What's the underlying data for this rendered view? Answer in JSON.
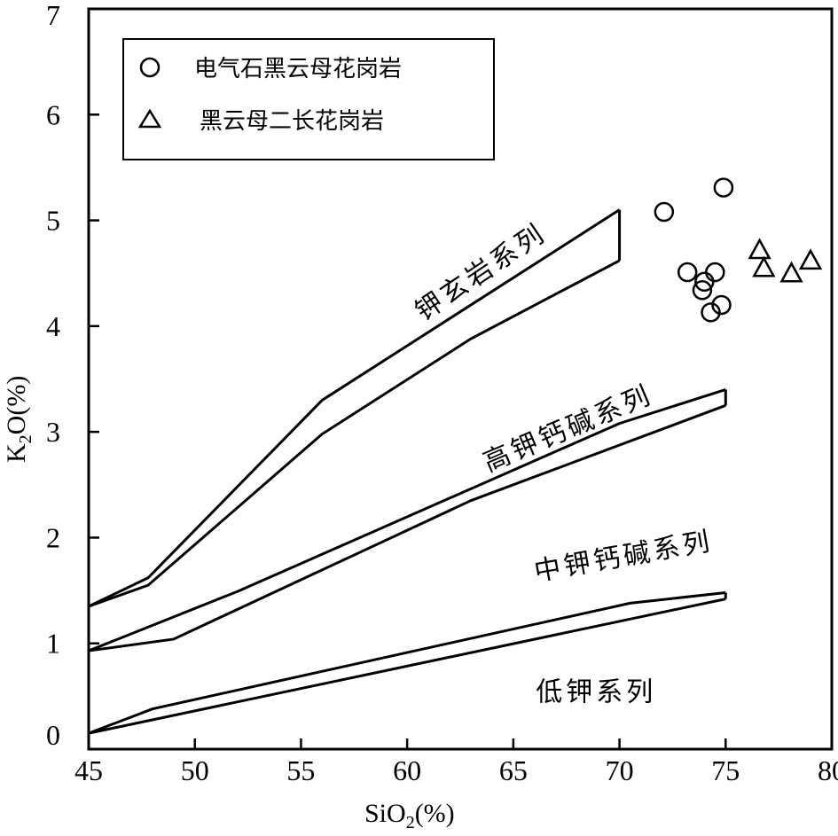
{
  "chart_data": {
    "type": "scatter",
    "xlabel": "SiO2(%)",
    "ylabel": "K2O(%)",
    "xlim": [
      45,
      80
    ],
    "ylim": [
      0,
      7
    ],
    "xticks": [
      45,
      50,
      55,
      60,
      65,
      70,
      75,
      80
    ],
    "yticks": [
      0,
      1,
      2,
      3,
      4,
      5,
      6,
      7
    ],
    "grid": false,
    "legend_position": "top-left",
    "series": [
      {
        "name": "电气石黑云母花岗岩",
        "marker": "circle",
        "points": [
          {
            "x": 72.1,
            "y": 5.08
          },
          {
            "x": 74.9,
            "y": 5.31
          },
          {
            "x": 73.2,
            "y": 4.51
          },
          {
            "x": 74.5,
            "y": 4.51
          },
          {
            "x": 74.0,
            "y": 4.42
          },
          {
            "x": 73.9,
            "y": 4.34
          },
          {
            "x": 74.8,
            "y": 4.2
          },
          {
            "x": 74.3,
            "y": 4.13
          }
        ]
      },
      {
        "name": "黑云母二长花岗岩",
        "marker": "triangle",
        "points": [
          {
            "x": 76.6,
            "y": 4.72
          },
          {
            "x": 76.8,
            "y": 4.55
          },
          {
            "x": 78.1,
            "y": 4.5
          },
          {
            "x": 79.0,
            "y": 4.62
          }
        ]
      }
    ],
    "boundary_bands": [
      {
        "upper": [
          [
            45,
            1.35
          ],
          [
            47.8,
            1.62
          ],
          [
            56,
            3.3
          ],
          [
            70,
            5.1
          ]
        ],
        "lower": [
          [
            45,
            1.35
          ],
          [
            47.8,
            1.55
          ],
          [
            56,
            2.98
          ],
          [
            63,
            3.88
          ],
          [
            70,
            4.62
          ]
        ],
        "close_end": true
      },
      {
        "upper": [
          [
            45,
            0.93
          ],
          [
            52,
            1.49
          ],
          [
            70,
            3.08
          ],
          [
            75,
            3.4
          ]
        ],
        "lower": [
          [
            45,
            0.93
          ],
          [
            49,
            1.04
          ],
          [
            63,
            2.35
          ],
          [
            75,
            3.25
          ]
        ],
        "close_end": true
      },
      {
        "upper": [
          [
            45,
            0.15
          ],
          [
            48,
            0.38
          ],
          [
            70.5,
            1.38
          ],
          [
            75,
            1.48
          ]
        ],
        "lower": [
          [
            45,
            0.15
          ],
          [
            75,
            1.42
          ]
        ],
        "close_end": true
      }
    ],
    "region_labels": [
      {
        "text": "钾玄岩系列",
        "x": 63.5,
        "y": 4.5,
        "angle": -34
      },
      {
        "text": "高钾钙碱系列",
        "x": 67.6,
        "y": 3.02,
        "angle": -23
      },
      {
        "text": "中钾钙碱系列",
        "x": 70.2,
        "y": 1.81,
        "angle": -10
      },
      {
        "text": "低钾系列",
        "x": 68.9,
        "y": 0.53,
        "angle": 0
      }
    ]
  }
}
